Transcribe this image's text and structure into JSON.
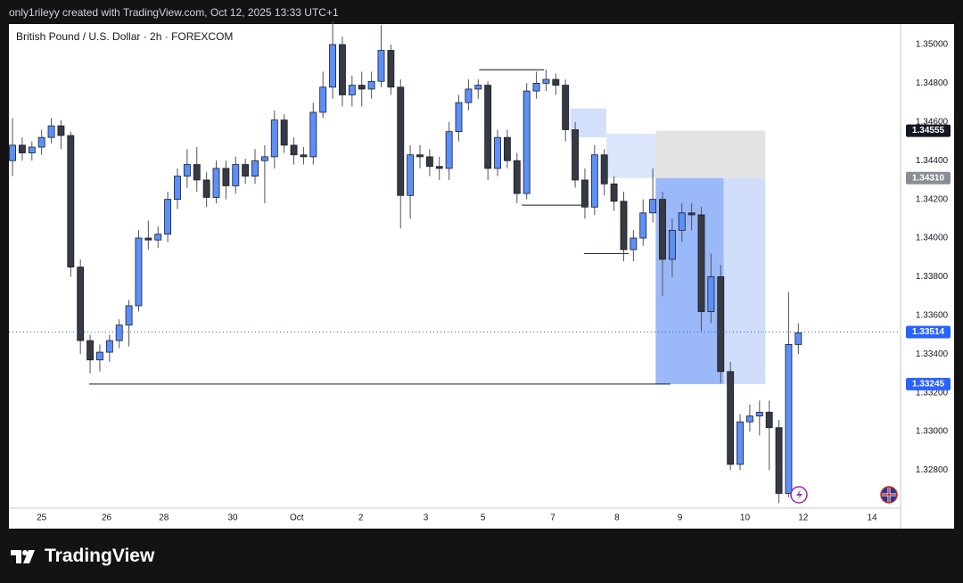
{
  "chart_data": {
    "type": "candlestick",
    "credit": "only1rileyy created with TradingView.com, Oct 12, 2025 13:33 UTC+1",
    "title": "British Pound / U.S. Dollar · 2h · FOREXCOM",
    "brand": "TradingView",
    "xlim": [
      -0.37,
      91.54
    ],
    "ylim": [
      1.32604,
      1.35106
    ],
    "xticks": [
      {
        "value": 3.0,
        "label": "25"
      },
      {
        "value": 9.7,
        "label": "26"
      },
      {
        "value": 15.6,
        "label": "28"
      },
      {
        "value": 22.7,
        "label": "30"
      },
      {
        "value": 29.3,
        "label": "Oct"
      },
      {
        "value": 35.9,
        "label": "2"
      },
      {
        "value": 42.6,
        "label": "3"
      },
      {
        "value": 48.5,
        "label": "5"
      },
      {
        "value": 55.7,
        "label": "7"
      },
      {
        "value": 62.3,
        "label": "8"
      },
      {
        "value": 68.8,
        "label": "9"
      },
      {
        "value": 75.5,
        "label": "10"
      },
      {
        "value": 81.5,
        "label": "12"
      },
      {
        "value": 88.6,
        "label": "14"
      }
    ],
    "yticks": [
      {
        "value": 1.328,
        "label": "1.32800"
      },
      {
        "value": 1.33,
        "label": "1.33000"
      },
      {
        "value": 1.332,
        "label": "1.33200"
      },
      {
        "value": 1.334,
        "label": "1.33400"
      },
      {
        "value": 1.336,
        "label": "1.33600"
      },
      {
        "value": 1.338,
        "label": "1.33800"
      },
      {
        "value": 1.34,
        "label": "1.34000"
      },
      {
        "value": 1.342,
        "label": "1.34200"
      },
      {
        "value": 1.344,
        "label": "1.34400"
      },
      {
        "value": 1.346,
        "label": "1.34600"
      },
      {
        "value": 1.348,
        "label": "1.34800"
      },
      {
        "value": 1.35,
        "label": "1.35000"
      }
    ],
    "series": [
      {
        "up_color": "#5b8ff9",
        "down_color": "#363a45",
        "ohlc": [
          [
            1.344,
            1.3462,
            1.3432,
            1.3448
          ],
          [
            1.3448,
            1.3452,
            1.344,
            1.3444
          ],
          [
            1.3444,
            1.345,
            1.344,
            1.3447
          ],
          [
            1.3447,
            1.3456,
            1.3443,
            1.3452
          ],
          [
            1.3452,
            1.3462,
            1.3449,
            1.3458
          ],
          [
            1.3458,
            1.3461,
            1.3446,
            1.3453
          ],
          [
            1.3453,
            1.3455,
            1.338,
            1.3385
          ],
          [
            1.3385,
            1.3389,
            1.334,
            1.3347
          ],
          [
            1.3347,
            1.335,
            1.333,
            1.3337
          ],
          [
            1.3337,
            1.3345,
            1.3331,
            1.3341
          ],
          [
            1.3341,
            1.335,
            1.3336,
            1.3347
          ],
          [
            1.3347,
            1.3358,
            1.3343,
            1.3355
          ],
          [
            1.3355,
            1.3368,
            1.3344,
            1.3365
          ],
          [
            1.3365,
            1.3404,
            1.3362,
            1.34
          ],
          [
            1.34,
            1.3409,
            1.3394,
            1.3399
          ],
          [
            1.3399,
            1.3406,
            1.3395,
            1.3402
          ],
          [
            1.3402,
            1.3424,
            1.3398,
            1.342
          ],
          [
            1.342,
            1.3436,
            1.3415,
            1.3432
          ],
          [
            1.3432,
            1.3446,
            1.3426,
            1.3438
          ],
          [
            1.3438,
            1.3447,
            1.3424,
            1.343
          ],
          [
            1.343,
            1.3434,
            1.3416,
            1.3421
          ],
          [
            1.3421,
            1.344,
            1.3418,
            1.3436
          ],
          [
            1.3436,
            1.344,
            1.342,
            1.3427
          ],
          [
            1.3427,
            1.3442,
            1.3423,
            1.3438
          ],
          [
            1.3438,
            1.3441,
            1.3428,
            1.3432
          ],
          [
            1.3432,
            1.3446,
            1.3428,
            1.344
          ],
          [
            1.344,
            1.3448,
            1.3418,
            1.3442
          ],
          [
            1.3442,
            1.3466,
            1.3436,
            1.3461
          ],
          [
            1.3461,
            1.3464,
            1.3444,
            1.3448
          ],
          [
            1.3448,
            1.3452,
            1.3438,
            1.3443
          ],
          [
            1.3443,
            1.3447,
            1.3438,
            1.3442
          ],
          [
            1.3442,
            1.347,
            1.3438,
            1.3465
          ],
          [
            1.3465,
            1.3486,
            1.3462,
            1.3478
          ],
          [
            1.3478,
            1.3512,
            1.3472,
            1.35
          ],
          [
            1.35,
            1.3504,
            1.3468,
            1.3474
          ],
          [
            1.3474,
            1.3484,
            1.3468,
            1.3479
          ],
          [
            1.3479,
            1.3486,
            1.3468,
            1.3477
          ],
          [
            1.3477,
            1.3486,
            1.3472,
            1.3481
          ],
          [
            1.3481,
            1.351,
            1.3478,
            1.3497
          ],
          [
            1.3497,
            1.35,
            1.3474,
            1.3478
          ],
          [
            1.3478,
            1.3482,
            1.3405,
            1.3422
          ],
          [
            1.3422,
            1.3448,
            1.341,
            1.3443
          ],
          [
            1.3443,
            1.3448,
            1.3436,
            1.3442
          ],
          [
            1.3442,
            1.3446,
            1.3432,
            1.3437
          ],
          [
            1.3437,
            1.3442,
            1.343,
            1.3436
          ],
          [
            1.3436,
            1.346,
            1.343,
            1.3455
          ],
          [
            1.3455,
            1.3474,
            1.345,
            1.347
          ],
          [
            1.347,
            1.3482,
            1.3466,
            1.3477
          ],
          [
            1.3477,
            1.3482,
            1.3472,
            1.3479
          ],
          [
            1.3479,
            1.3481,
            1.343,
            1.3436
          ],
          [
            1.3436,
            1.3456,
            1.3432,
            1.3452
          ],
          [
            1.3452,
            1.3456,
            1.3436,
            1.344
          ],
          [
            1.344,
            1.3444,
            1.3418,
            1.3423
          ],
          [
            1.3423,
            1.348,
            1.342,
            1.3476
          ],
          [
            1.3476,
            1.3486,
            1.3472,
            1.348
          ],
          [
            1.348,
            1.3487,
            1.3476,
            1.3482
          ],
          [
            1.3482,
            1.3485,
            1.3474,
            1.3479
          ],
          [
            1.3479,
            1.3482,
            1.345,
            1.3456
          ],
          [
            1.3456,
            1.346,
            1.3426,
            1.343
          ],
          [
            1.343,
            1.3436,
            1.341,
            1.3416
          ],
          [
            1.3416,
            1.3448,
            1.3412,
            1.3443
          ],
          [
            1.3443,
            1.3446,
            1.3422,
            1.3428
          ],
          [
            1.3428,
            1.3432,
            1.3414,
            1.3419
          ],
          [
            1.3419,
            1.3424,
            1.3388,
            1.3394
          ],
          [
            1.3394,
            1.3404,
            1.3388,
            1.34
          ],
          [
            1.34,
            1.342,
            1.3396,
            1.3413
          ],
          [
            1.3413,
            1.3436,
            1.3408,
            1.342
          ],
          [
            1.342,
            1.3424,
            1.337,
            1.3389
          ],
          [
            1.3389,
            1.341,
            1.338,
            1.3404
          ],
          [
            1.3404,
            1.3418,
            1.3398,
            1.3413
          ],
          [
            1.3413,
            1.3418,
            1.3404,
            1.3412
          ],
          [
            1.3412,
            1.3416,
            1.3352,
            1.3362
          ],
          [
            1.3362,
            1.3392,
            1.3356,
            1.338
          ],
          [
            1.338,
            1.3386,
            1.3325,
            1.3331
          ],
          [
            1.3331,
            1.3336,
            1.328,
            1.3283
          ],
          [
            1.3283,
            1.3309,
            1.328,
            1.3305
          ],
          [
            1.3305,
            1.3314,
            1.33,
            1.3308
          ],
          [
            1.3308,
            1.3316,
            1.3298,
            1.331
          ],
          [
            1.331,
            1.3316,
            1.328,
            1.3302
          ],
          [
            1.3302,
            1.3306,
            1.3263,
            1.3268
          ],
          [
            1.3268,
            1.3372,
            1.3266,
            1.3345
          ],
          [
            1.3345,
            1.3356,
            1.334,
            1.3351
          ]
        ]
      }
    ],
    "zones": [
      {
        "x": [
          66.3,
          77.6
        ],
        "y": [
          1.3431,
          1.34555
        ],
        "color": "#e3e3e3"
      },
      {
        "x": [
          57.5,
          61.2
        ],
        "y": [
          1.3452,
          1.3467
        ],
        "color": "#d3e0fb"
      },
      {
        "x": [
          61.2,
          66.3
        ],
        "y": [
          1.3431,
          1.3454
        ],
        "color": "#dce6fc"
      },
      {
        "x": [
          66.3,
          77.6
        ],
        "y": [
          1.33245,
          1.3431
        ],
        "color": "#d0defc"
      },
      {
        "x": [
          66.3,
          73.3
        ],
        "y": [
          1.33245,
          1.3431
        ],
        "color": "#9bb8f8"
      }
    ],
    "levels": [
      {
        "x": [
          48.1,
          54.8
        ],
        "y": 1.3487
      },
      {
        "x": [
          52.5,
          58.9
        ],
        "y": 1.3417
      },
      {
        "x": [
          58.9,
          63.5
        ],
        "y": 1.3392
      },
      {
        "x": [
          7.9,
          67.8
        ],
        "y": 1.33245
      }
    ],
    "price_tags": [
      {
        "value": 1.34555,
        "label": "1.34555",
        "color": "#131722"
      },
      {
        "value": 1.3431,
        "label": "1.34310",
        "color": "#8a8d96"
      },
      {
        "value": 1.33514,
        "label": "1.33514",
        "color": "#2962ff"
      },
      {
        "value": 1.33245,
        "label": "1.33245",
        "color": "#2962ff"
      }
    ]
  }
}
